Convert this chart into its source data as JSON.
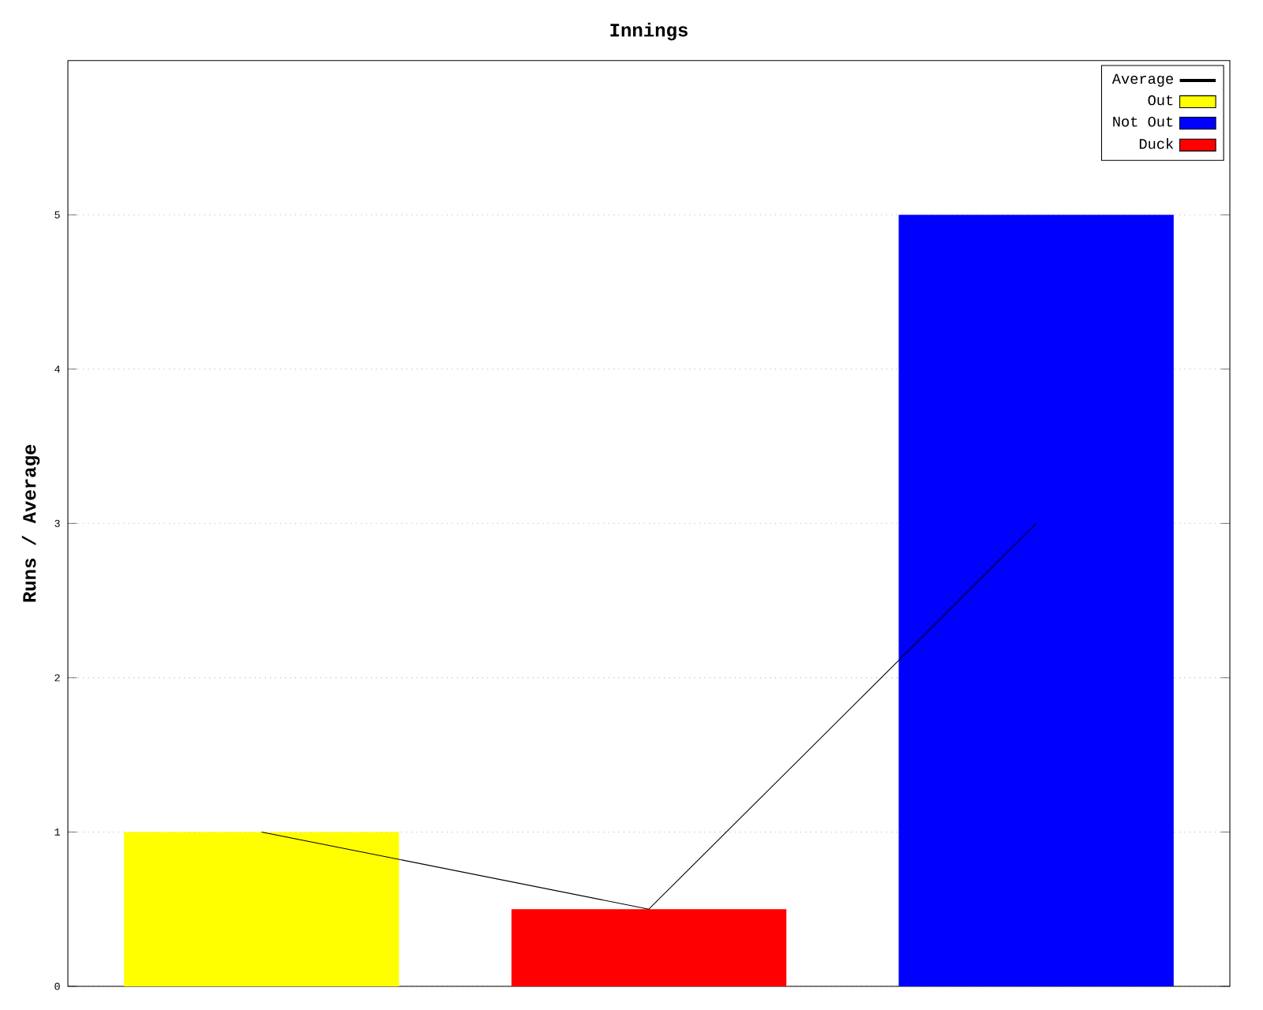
{
  "chart_data": {
    "type": "bar",
    "title": "Innings",
    "ylabel": "Runs / Average",
    "categories": [
      null,
      null,
      null
    ],
    "series": [
      {
        "name": "Average",
        "type": "line",
        "color": "#000000",
        "values": [
          1,
          0.5,
          3
        ]
      },
      {
        "name": "Out",
        "color": "#ffff00",
        "values": [
          1,
          null,
          null
        ]
      },
      {
        "name": "Not Out",
        "color": "#0000ff",
        "values": [
          null,
          null,
          5
        ]
      },
      {
        "name": "Duck",
        "color": "#ff0000",
        "values": [
          null,
          0.5,
          null
        ]
      }
    ],
    "ylim": [
      0,
      6
    ],
    "yticks": [
      0,
      1,
      2,
      3,
      4,
      5
    ],
    "grid": "y",
    "legend": "top right",
    "tick_labels": "y",
    "marker": "none"
  }
}
